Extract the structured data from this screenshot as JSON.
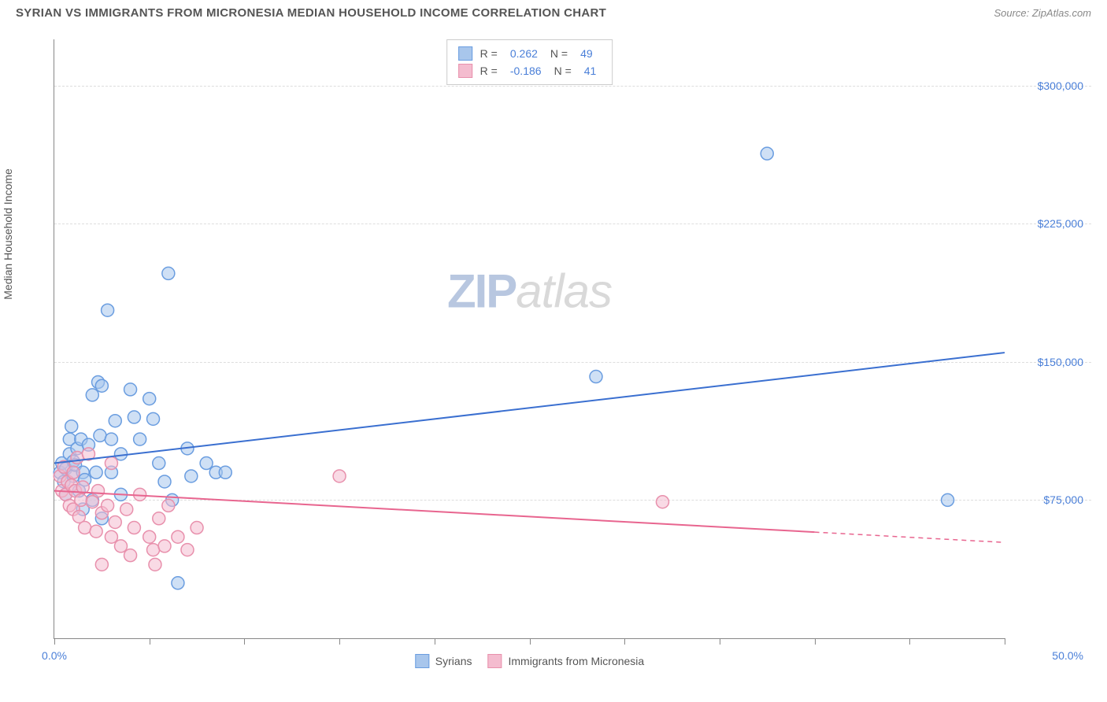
{
  "header": {
    "title": "SYRIAN VS IMMIGRANTS FROM MICRONESIA MEDIAN HOUSEHOLD INCOME CORRELATION CHART",
    "source": "Source: ZipAtlas.com"
  },
  "watermark": {
    "part1": "ZIP",
    "part2": "atlas"
  },
  "chart": {
    "type": "scatter",
    "y_axis_label": "Median Household Income",
    "background_color": "#ffffff",
    "grid_color": "#dddddd",
    "axis_color": "#888888",
    "xlim": [
      0,
      50
    ],
    "ylim": [
      0,
      325000
    ],
    "x_ticks": [
      0,
      5,
      10,
      15,
      20,
      25,
      30,
      35,
      40,
      45,
      50
    ],
    "x_tick_labels": {
      "0": "0.0%",
      "50": "50.0%"
    },
    "y_ticks": [
      75000,
      150000,
      225000,
      300000
    ],
    "y_tick_labels": {
      "75000": "$75,000",
      "150000": "$150,000",
      "225000": "$225,000",
      "300000": "$300,000"
    },
    "marker_radius": 8,
    "marker_stroke_width": 1.5,
    "marker_fill_opacity": 0.25,
    "trend_line_width": 2,
    "title_fontsize": 15,
    "label_fontsize": 14,
    "tick_fontsize": 14,
    "series": [
      {
        "name": "Syrians",
        "color_stroke": "#6a9de0",
        "color_fill": "#a8c6ec",
        "trend_color": "#3a6fd0",
        "r_value": "0.262",
        "n_value": "49",
        "trend_start": [
          0,
          95000
        ],
        "trend_end": [
          50,
          155000
        ],
        "trend_solid_end_x": 50,
        "points": [
          [
            0.3,
            90000
          ],
          [
            0.4,
            95000
          ],
          [
            0.5,
            85000
          ],
          [
            0.6,
            92000
          ],
          [
            0.6,
            78000
          ],
          [
            0.8,
            108000
          ],
          [
            0.8,
            100000
          ],
          [
            0.9,
            115000
          ],
          [
            1.0,
            88000
          ],
          [
            1.0,
            96000
          ],
          [
            1.1,
            94000
          ],
          [
            1.2,
            103000
          ],
          [
            1.3,
            80000
          ],
          [
            1.4,
            108000
          ],
          [
            1.5,
            90000
          ],
          [
            1.5,
            70000
          ],
          [
            1.6,
            86000
          ],
          [
            1.8,
            105000
          ],
          [
            2.0,
            132000
          ],
          [
            2.0,
            75000
          ],
          [
            2.2,
            90000
          ],
          [
            2.3,
            139000
          ],
          [
            2.4,
            110000
          ],
          [
            2.5,
            137000
          ],
          [
            2.5,
            65000
          ],
          [
            2.8,
            178000
          ],
          [
            3.0,
            108000
          ],
          [
            3.0,
            90000
          ],
          [
            3.2,
            118000
          ],
          [
            3.5,
            100000
          ],
          [
            3.5,
            78000
          ],
          [
            4.0,
            135000
          ],
          [
            4.2,
            120000
          ],
          [
            4.5,
            108000
          ],
          [
            5.0,
            130000
          ],
          [
            5.2,
            119000
          ],
          [
            5.5,
            95000
          ],
          [
            5.8,
            85000
          ],
          [
            6.0,
            198000
          ],
          [
            6.2,
            75000
          ],
          [
            6.5,
            30000
          ],
          [
            7.0,
            103000
          ],
          [
            7.2,
            88000
          ],
          [
            8.0,
            95000
          ],
          [
            8.5,
            90000
          ],
          [
            9.0,
            90000
          ],
          [
            28.5,
            142000
          ],
          [
            37.5,
            263000
          ],
          [
            47.0,
            75000
          ]
        ]
      },
      {
        "name": "Immigrants from Micronesia",
        "color_stroke": "#e890ac",
        "color_fill": "#f4bccf",
        "trend_color": "#e8658f",
        "r_value": "-0.186",
        "n_value": "41",
        "trend_start": [
          0,
          80000
        ],
        "trend_end": [
          50,
          52000
        ],
        "trend_solid_end_x": 40,
        "points": [
          [
            0.3,
            88000
          ],
          [
            0.4,
            80000
          ],
          [
            0.5,
            93000
          ],
          [
            0.6,
            78000
          ],
          [
            0.7,
            85000
          ],
          [
            0.8,
            72000
          ],
          [
            0.9,
            83000
          ],
          [
            1.0,
            90000
          ],
          [
            1.0,
            70000
          ],
          [
            1.1,
            80000
          ],
          [
            1.2,
            98000
          ],
          [
            1.3,
            66000
          ],
          [
            1.4,
            75000
          ],
          [
            1.5,
            82000
          ],
          [
            1.6,
            60000
          ],
          [
            1.8,
            100000
          ],
          [
            2.0,
            74000
          ],
          [
            2.2,
            58000
          ],
          [
            2.3,
            80000
          ],
          [
            2.5,
            68000
          ],
          [
            2.5,
            40000
          ],
          [
            2.8,
            72000
          ],
          [
            3.0,
            55000
          ],
          [
            3.0,
            95000
          ],
          [
            3.2,
            63000
          ],
          [
            3.5,
            50000
          ],
          [
            3.8,
            70000
          ],
          [
            4.0,
            45000
          ],
          [
            4.2,
            60000
          ],
          [
            4.5,
            78000
          ],
          [
            5.0,
            55000
          ],
          [
            5.2,
            48000
          ],
          [
            5.3,
            40000
          ],
          [
            5.5,
            65000
          ],
          [
            5.8,
            50000
          ],
          [
            6.0,
            72000
          ],
          [
            6.5,
            55000
          ],
          [
            7.0,
            48000
          ],
          [
            7.5,
            60000
          ],
          [
            15.0,
            88000
          ],
          [
            32.0,
            74000
          ]
        ]
      }
    ],
    "legend_top": {
      "r_label": "R =",
      "n_label": "N ="
    },
    "legend_bottom_labels": [
      "Syrians",
      "Immigrants from Micronesia"
    ]
  }
}
